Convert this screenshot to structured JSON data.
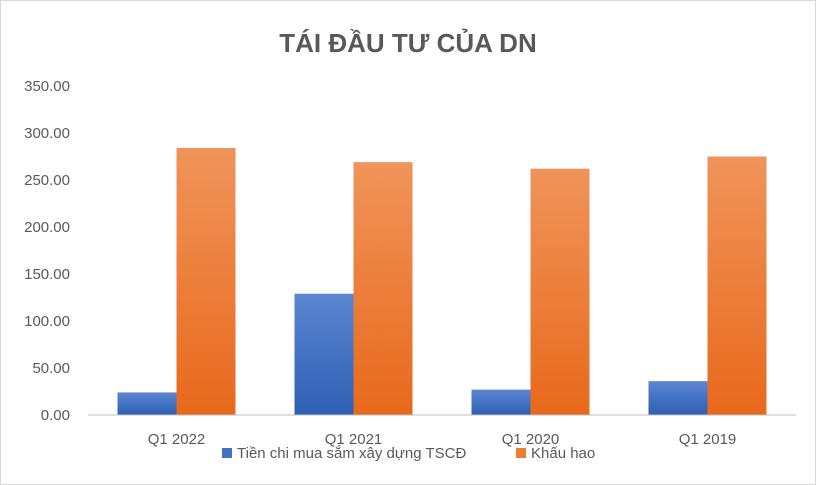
{
  "chart_data": {
    "type": "bar",
    "title": "TÁI ĐẦU TƯ CỦA DN",
    "xlabel": "",
    "ylabel": "",
    "categories": [
      "Q1 2022",
      "Q1 2021",
      "Q1 2020",
      "Q1 2019"
    ],
    "series": [
      {
        "name": "Tiền chi mua sắm xây dựng TSCĐ",
        "values": [
          24,
          129,
          27,
          36
        ],
        "color": "#4472c4"
      },
      {
        "name": "Khấu hao",
        "values": [
          284,
          269,
          262,
          275
        ],
        "color": "#ed7d31"
      }
    ],
    "ylim": [
      0,
      350
    ],
    "yticks": [
      "0.00",
      "50.00",
      "100.00",
      "150.00",
      "200.00",
      "250.00",
      "300.00",
      "350.00"
    ],
    "grid": false,
    "legend": "bottom"
  }
}
